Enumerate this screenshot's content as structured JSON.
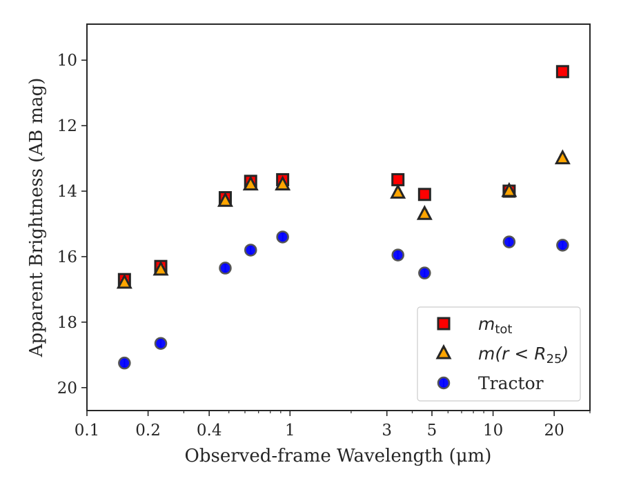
{
  "chart_data": {
    "type": "scatter",
    "title": "",
    "xlabel": "Observed-frame Wavelength (μm)",
    "ylabel": "Apparent Brightness (AB mag)",
    "xscale": "log",
    "xlim": [
      0.1,
      30
    ],
    "ylim": [
      20.7,
      8.9
    ],
    "y_inverted": true,
    "grid": false,
    "legend_position": "lower-right",
    "x_ticks": [
      {
        "value": 0.1,
        "label": "0.1"
      },
      {
        "value": 0.2,
        "label": "0.2"
      },
      {
        "value": 0.4,
        "label": "0.4"
      },
      {
        "value": 1,
        "label": "1"
      },
      {
        "value": 3,
        "label": "3"
      },
      {
        "value": 5,
        "label": "5"
      },
      {
        "value": 10,
        "label": "10"
      },
      {
        "value": 20,
        "label": "20"
      }
    ],
    "y_ticks": [
      {
        "value": 10,
        "label": "10"
      },
      {
        "value": 12,
        "label": "12"
      },
      {
        "value": 14,
        "label": "14"
      },
      {
        "value": 16,
        "label": "16"
      },
      {
        "value": 18,
        "label": "18"
      },
      {
        "value": 20,
        "label": "20"
      }
    ],
    "series": [
      {
        "key": "mtot",
        "legend_base": "m",
        "legend_sub": "tot",
        "marker": "square",
        "color": "#ff0000",
        "errcolor": "#cc0000",
        "points": [
          {
            "x": 0.153,
            "y": 16.7
          },
          {
            "x": 0.231,
            "y": 16.3
          },
          {
            "x": 0.48,
            "y": 14.2
          },
          {
            "x": 0.64,
            "y": 13.7
          },
          {
            "x": 0.92,
            "y": 13.65
          },
          {
            "x": 3.4,
            "y": 13.65
          },
          {
            "x": 4.6,
            "y": 14.1
          },
          {
            "x": 12.0,
            "y": 14.0
          },
          {
            "x": 22.0,
            "y": 10.35
          }
        ]
      },
      {
        "key": "mr25",
        "legend_base": "m(r < R",
        "legend_sub": "25",
        "legend_tail": ")",
        "marker": "triangle",
        "color": "#ffa500",
        "errcolor": "#ffa500",
        "points": [
          {
            "x": 0.153,
            "y": 16.8
          },
          {
            "x": 0.231,
            "y": 16.4
          },
          {
            "x": 0.48,
            "y": 14.3
          },
          {
            "x": 0.64,
            "y": 13.8
          },
          {
            "x": 0.92,
            "y": 13.8
          },
          {
            "x": 3.4,
            "y": 14.05
          },
          {
            "x": 4.6,
            "y": 14.7
          },
          {
            "x": 12.0,
            "y": 14.0
          },
          {
            "x": 22.0,
            "y": 13.0
          }
        ]
      },
      {
        "key": "tractor",
        "legend_base": "Tractor",
        "marker": "circle",
        "color": "#0000ff",
        "errcolor": "#0000ff",
        "points": [
          {
            "x": 0.153,
            "y": 19.25
          },
          {
            "x": 0.231,
            "y": 18.65
          },
          {
            "x": 0.48,
            "y": 16.35
          },
          {
            "x": 0.64,
            "y": 15.8
          },
          {
            "x": 0.92,
            "y": 15.4
          },
          {
            "x": 3.4,
            "y": 15.95
          },
          {
            "x": 4.6,
            "y": 16.5
          },
          {
            "x": 12.0,
            "y": 15.55
          },
          {
            "x": 22.0,
            "y": 15.65
          }
        ]
      }
    ]
  }
}
